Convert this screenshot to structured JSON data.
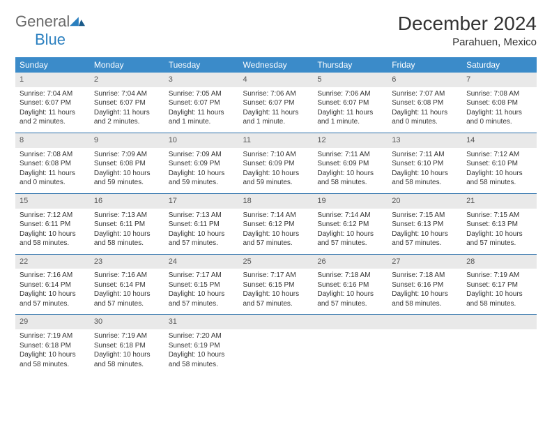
{
  "logo": {
    "text1": "General",
    "text2": "Blue"
  },
  "title": "December 2024",
  "location": "Parahuen, Mexico",
  "weekdays": [
    "Sunday",
    "Monday",
    "Tuesday",
    "Wednesday",
    "Thursday",
    "Friday",
    "Saturday"
  ],
  "colors": {
    "header_bg": "#3b8bc9",
    "header_text": "#ffffff",
    "daynum_bg": "#e9e9e9",
    "divider": "#2a6faa",
    "logo_gray": "#6a6a6a",
    "logo_blue": "#2a7fbf"
  },
  "weeks": [
    [
      {
        "n": "1",
        "sr": "7:04 AM",
        "ss": "6:07 PM",
        "dl": "11 hours and 2 minutes."
      },
      {
        "n": "2",
        "sr": "7:04 AM",
        "ss": "6:07 PM",
        "dl": "11 hours and 2 minutes."
      },
      {
        "n": "3",
        "sr": "7:05 AM",
        "ss": "6:07 PM",
        "dl": "11 hours and 1 minute."
      },
      {
        "n": "4",
        "sr": "7:06 AM",
        "ss": "6:07 PM",
        "dl": "11 hours and 1 minute."
      },
      {
        "n": "5",
        "sr": "7:06 AM",
        "ss": "6:07 PM",
        "dl": "11 hours and 1 minute."
      },
      {
        "n": "6",
        "sr": "7:07 AM",
        "ss": "6:08 PM",
        "dl": "11 hours and 0 minutes."
      },
      {
        "n": "7",
        "sr": "7:08 AM",
        "ss": "6:08 PM",
        "dl": "11 hours and 0 minutes."
      }
    ],
    [
      {
        "n": "8",
        "sr": "7:08 AM",
        "ss": "6:08 PM",
        "dl": "11 hours and 0 minutes."
      },
      {
        "n": "9",
        "sr": "7:09 AM",
        "ss": "6:08 PM",
        "dl": "10 hours and 59 minutes."
      },
      {
        "n": "10",
        "sr": "7:09 AM",
        "ss": "6:09 PM",
        "dl": "10 hours and 59 minutes."
      },
      {
        "n": "11",
        "sr": "7:10 AM",
        "ss": "6:09 PM",
        "dl": "10 hours and 59 minutes."
      },
      {
        "n": "12",
        "sr": "7:11 AM",
        "ss": "6:09 PM",
        "dl": "10 hours and 58 minutes."
      },
      {
        "n": "13",
        "sr": "7:11 AM",
        "ss": "6:10 PM",
        "dl": "10 hours and 58 minutes."
      },
      {
        "n": "14",
        "sr": "7:12 AM",
        "ss": "6:10 PM",
        "dl": "10 hours and 58 minutes."
      }
    ],
    [
      {
        "n": "15",
        "sr": "7:12 AM",
        "ss": "6:11 PM",
        "dl": "10 hours and 58 minutes."
      },
      {
        "n": "16",
        "sr": "7:13 AM",
        "ss": "6:11 PM",
        "dl": "10 hours and 58 minutes."
      },
      {
        "n": "17",
        "sr": "7:13 AM",
        "ss": "6:11 PM",
        "dl": "10 hours and 57 minutes."
      },
      {
        "n": "18",
        "sr": "7:14 AM",
        "ss": "6:12 PM",
        "dl": "10 hours and 57 minutes."
      },
      {
        "n": "19",
        "sr": "7:14 AM",
        "ss": "6:12 PM",
        "dl": "10 hours and 57 minutes."
      },
      {
        "n": "20",
        "sr": "7:15 AM",
        "ss": "6:13 PM",
        "dl": "10 hours and 57 minutes."
      },
      {
        "n": "21",
        "sr": "7:15 AM",
        "ss": "6:13 PM",
        "dl": "10 hours and 57 minutes."
      }
    ],
    [
      {
        "n": "22",
        "sr": "7:16 AM",
        "ss": "6:14 PM",
        "dl": "10 hours and 57 minutes."
      },
      {
        "n": "23",
        "sr": "7:16 AM",
        "ss": "6:14 PM",
        "dl": "10 hours and 57 minutes."
      },
      {
        "n": "24",
        "sr": "7:17 AM",
        "ss": "6:15 PM",
        "dl": "10 hours and 57 minutes."
      },
      {
        "n": "25",
        "sr": "7:17 AM",
        "ss": "6:15 PM",
        "dl": "10 hours and 57 minutes."
      },
      {
        "n": "26",
        "sr": "7:18 AM",
        "ss": "6:16 PM",
        "dl": "10 hours and 57 minutes."
      },
      {
        "n": "27",
        "sr": "7:18 AM",
        "ss": "6:16 PM",
        "dl": "10 hours and 58 minutes."
      },
      {
        "n": "28",
        "sr": "7:19 AM",
        "ss": "6:17 PM",
        "dl": "10 hours and 58 minutes."
      }
    ],
    [
      {
        "n": "29",
        "sr": "7:19 AM",
        "ss": "6:18 PM",
        "dl": "10 hours and 58 minutes."
      },
      {
        "n": "30",
        "sr": "7:19 AM",
        "ss": "6:18 PM",
        "dl": "10 hours and 58 minutes."
      },
      {
        "n": "31",
        "sr": "7:20 AM",
        "ss": "6:19 PM",
        "dl": "10 hours and 58 minutes."
      },
      null,
      null,
      null,
      null
    ]
  ],
  "labels": {
    "sunrise": "Sunrise:",
    "sunset": "Sunset:",
    "daylight": "Daylight:"
  }
}
